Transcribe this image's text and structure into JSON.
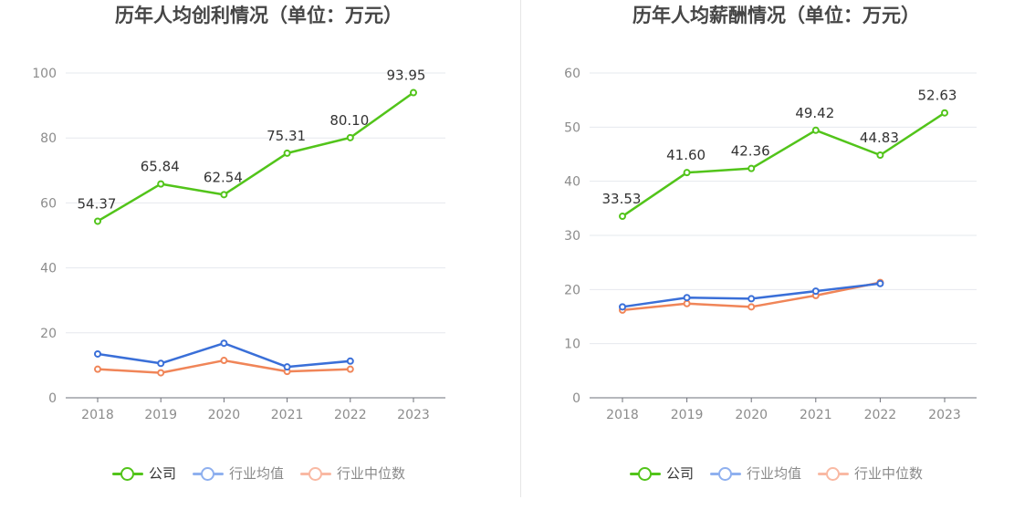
{
  "chart_data": [
    {
      "type": "line",
      "title": "历年人均创利情况（单位：万元）",
      "categories": [
        "2018",
        "2019",
        "2020",
        "2021",
        "2022",
        "2023"
      ],
      "ylim": [
        0,
        100
      ],
      "yticks": [
        0,
        20,
        40,
        60,
        80,
        100
      ],
      "grid": true,
      "legend_position": "bottom-center",
      "series": [
        {
          "name": "公司",
          "color": "#52c41a",
          "labeled": true,
          "values": [
            54.37,
            65.84,
            62.54,
            75.31,
            80.1,
            93.95
          ],
          "labels": [
            "54.37",
            "65.84",
            "62.54",
            "75.31",
            "80.10",
            "93.95"
          ]
        },
        {
          "name": "行业均值",
          "color": "#3a6fd8",
          "labeled": false,
          "values": [
            13.5,
            10.6,
            16.8,
            9.5,
            11.3,
            null
          ]
        },
        {
          "name": "行业中位数",
          "color": "#f08558",
          "labeled": false,
          "values": [
            8.8,
            7.7,
            11.5,
            8.1,
            8.8,
            null
          ]
        }
      ]
    },
    {
      "type": "line",
      "title": "历年人均薪酬情况（单位：万元）",
      "categories": [
        "2018",
        "2019",
        "2020",
        "2021",
        "2022",
        "2023"
      ],
      "ylim": [
        0,
        60
      ],
      "yticks": [
        0,
        10,
        20,
        30,
        40,
        50,
        60
      ],
      "grid": true,
      "legend_position": "bottom-center",
      "series": [
        {
          "name": "公司",
          "color": "#52c41a",
          "labeled": true,
          "values": [
            33.53,
            41.6,
            42.36,
            49.42,
            44.83,
            52.63
          ],
          "labels": [
            "33.53",
            "41.60",
            "42.36",
            "49.42",
            "44.83",
            "52.63"
          ]
        },
        {
          "name": "行业均值",
          "color": "#3a6fd8",
          "labeled": false,
          "values": [
            16.8,
            18.5,
            18.3,
            19.7,
            21.1,
            null
          ]
        },
        {
          "name": "行业中位数",
          "color": "#f08558",
          "labeled": false,
          "values": [
            16.2,
            17.4,
            16.8,
            18.9,
            21.3,
            null
          ]
        }
      ]
    }
  ],
  "legend_colors": {
    "公司": "#52c41a",
    "行业均值": "#8fb0ef",
    "行业中位数": "#f9b9a3"
  }
}
